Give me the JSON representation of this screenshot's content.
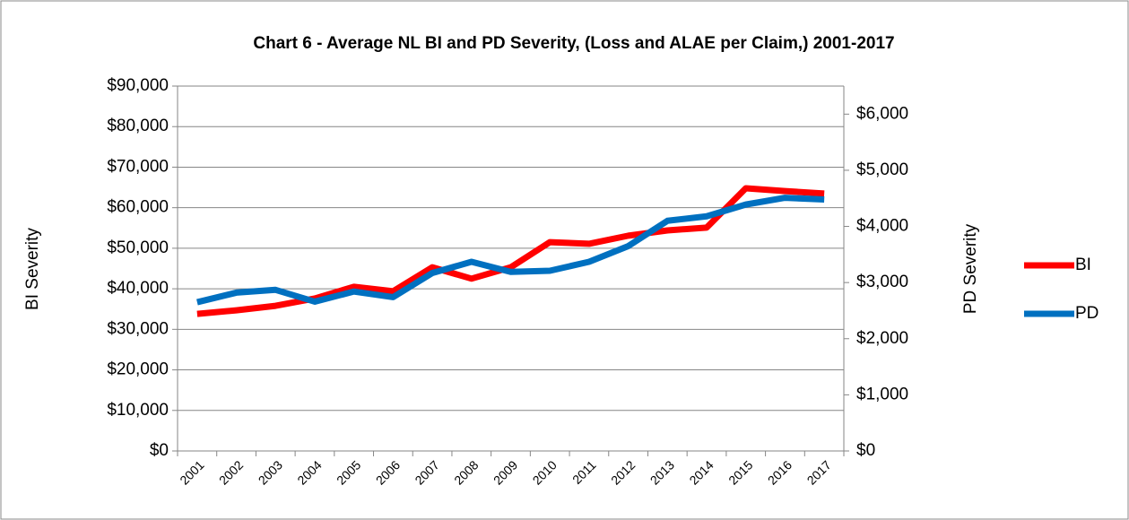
{
  "chart_data": {
    "type": "line",
    "title": "Chart 6 - Average NL BI and PD Severity, (Loss and ALAE per Claim,) 2001-2017",
    "y_label": "BI Severity",
    "y2_label": "PD Severity",
    "categories": [
      "2001",
      "2002",
      "2003",
      "2004",
      "2005",
      "2006",
      "2007",
      "2008",
      "2009",
      "2010",
      "2011",
      "2012",
      "2013",
      "2014",
      "2015",
      "2016",
      "2017"
    ],
    "series": [
      {
        "name": "BI",
        "color": "#ff0000",
        "values": [
          33800,
          34700,
          35800,
          37600,
          40500,
          39400,
          45300,
          42500,
          45300,
          51500,
          51100,
          53100,
          54400,
          55100,
          64800,
          64100,
          63500
        ]
      },
      {
        "name": "PD",
        "color": "#0070c0",
        "axis": "y2",
        "values": [
          2650,
          2820,
          2870,
          2660,
          2840,
          2740,
          3170,
          3370,
          3190,
          3210,
          3370,
          3650,
          4100,
          4180,
          4390,
          4510,
          4480
        ]
      }
    ],
    "ylim": [
      0,
      90000
    ],
    "yticks": [
      {
        "value": 0,
        "label": "$0"
      },
      {
        "value": 10000,
        "label": "$10,000"
      },
      {
        "value": 20000,
        "label": "$20,000"
      },
      {
        "value": 30000,
        "label": "$30,000"
      },
      {
        "value": 40000,
        "label": "$40,000"
      },
      {
        "value": 50000,
        "label": "$50,000"
      },
      {
        "value": 60000,
        "label": "$60,000"
      },
      {
        "value": 70000,
        "label": "$70,000"
      },
      {
        "value": 80000,
        "label": "$80,000"
      },
      {
        "value": 90000,
        "label": "$90,000"
      }
    ],
    "y2lim": [
      0,
      6500
    ],
    "y2ticks": [
      {
        "value": 0,
        "label": "$0"
      },
      {
        "value": 1000,
        "label": "$1,000"
      },
      {
        "value": 2000,
        "label": "$2,000"
      },
      {
        "value": 3000,
        "label": "$3,000"
      },
      {
        "value": 4000,
        "label": "$4,000"
      },
      {
        "value": 5000,
        "label": "$5,000"
      },
      {
        "value": 6000,
        "label": "$6,000"
      }
    ],
    "grid": true,
    "legend": "right"
  }
}
